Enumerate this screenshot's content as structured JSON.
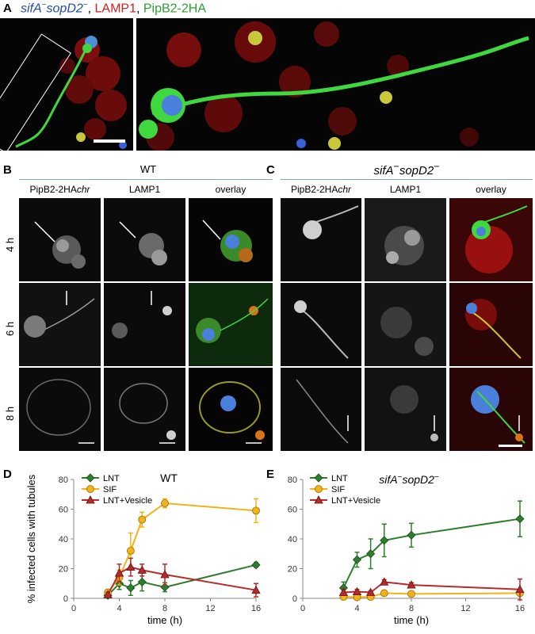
{
  "panelA": {
    "letter": "A",
    "title_parts": [
      {
        "text": "sifA",
        "color": "#1f4fa3",
        "italic": true
      },
      {
        "text": "−",
        "color": "#1f4fa3",
        "italic": false,
        "sup": true
      },
      {
        "text": "sopD2",
        "color": "#1f4fa3",
        "italic": true
      },
      {
        "text": "−",
        "color": "#1f4fa3",
        "italic": false,
        "sup": true
      },
      {
        "text": ", ",
        "color": "#000000",
        "italic": false
      },
      {
        "text": "LAMP1",
        "color": "#d41f1f",
        "italic": false
      },
      {
        "text": ", ",
        "color": "#000000",
        "italic": false
      },
      {
        "text": "PipB2-2HA",
        "color": "#2ea02e",
        "italic": false
      }
    ]
  },
  "panelB": {
    "letter": "B",
    "group_title": "WT",
    "col_labels": [
      "PipB2-2HA",
      "LAMP1",
      "overlay"
    ],
    "col_label_suffix": "chr",
    "row_labels": [
      "4 h",
      "6 h",
      "8 h"
    ]
  },
  "panelC": {
    "letter": "C",
    "group_title_a": "sifA",
    "group_title_b": "sopD2",
    "sup": "−",
    "col_labels": [
      "PipB2-2HA",
      "LAMP1",
      "overlay"
    ],
    "col_label_suffix": "chr"
  },
  "chart_data": [
    {
      "panel": "D",
      "type": "line",
      "title": "WT",
      "xlabel": "time (h)",
      "ylabel": "% infected cells with tubules",
      "xlim": [
        0,
        16
      ],
      "ylim": [
        0,
        80
      ],
      "xticks": [
        0,
        4,
        8,
        12,
        16
      ],
      "yticks": [
        0,
        20,
        40,
        60,
        80
      ],
      "legend_position": "top-left",
      "series": [
        {
          "name": "LNT",
          "color": "#2e7d2e",
          "marker": "diamond",
          "x": [
            3,
            4,
            5,
            6,
            8,
            16
          ],
          "y": [
            2,
            10,
            7,
            11,
            7.5,
            22.5
          ],
          "err": [
            1,
            4,
            5,
            6,
            3,
            1.5
          ]
        },
        {
          "name": "SIF",
          "color": "#f2b21b",
          "marker": "circle",
          "x": [
            3,
            4,
            5,
            6,
            8,
            16
          ],
          "y": [
            4,
            14,
            32,
            53,
            64,
            59
          ],
          "err": [
            2,
            5,
            12,
            5,
            3,
            8
          ]
        },
        {
          "name": "LNT+Vesicle",
          "color": "#b52b2b",
          "marker": "triangle",
          "x": [
            3,
            4,
            5,
            6,
            8,
            16
          ],
          "y": [
            2.5,
            17,
            21,
            19,
            16,
            5.5
          ],
          "err": [
            1.5,
            6,
            6,
            4,
            7,
            4.5
          ]
        }
      ]
    },
    {
      "panel": "E",
      "type": "line",
      "title_a": "sifA",
      "title_b": "sopD2",
      "title_sup": "−",
      "xlabel": "time (h)",
      "ylabel": "",
      "xlim": [
        0,
        16
      ],
      "ylim": [
        0,
        80
      ],
      "xticks": [
        0,
        4,
        8,
        12,
        16
      ],
      "yticks": [
        0,
        20,
        40,
        60,
        80
      ],
      "legend_position": "top-left",
      "series": [
        {
          "name": "LNT",
          "color": "#2e7d2e",
          "marker": "diamond",
          "x": [
            3,
            4,
            5,
            6,
            8,
            16
          ],
          "y": [
            7,
            26,
            30,
            39,
            42.5,
            53.5
          ],
          "err": [
            4,
            5,
            10,
            11,
            8,
            12
          ]
        },
        {
          "name": "SIF",
          "color": "#f2b21b",
          "marker": "circle",
          "x": [
            3,
            4,
            5,
            6,
            8,
            16
          ],
          "y": [
            1,
            0.8,
            1,
            3.5,
            3,
            3.5
          ],
          "err": [
            1,
            0.8,
            1,
            1,
            1,
            1
          ]
        },
        {
          "name": "LNT+Vesicle",
          "color": "#b52b2b",
          "marker": "triangle",
          "x": [
            3,
            4,
            5,
            6,
            8,
            16
          ],
          "y": [
            4,
            4.5,
            4,
            11,
            9,
            6
          ],
          "err": [
            2,
            1.5,
            1,
            1.5,
            1.5,
            7
          ]
        }
      ]
    }
  ]
}
